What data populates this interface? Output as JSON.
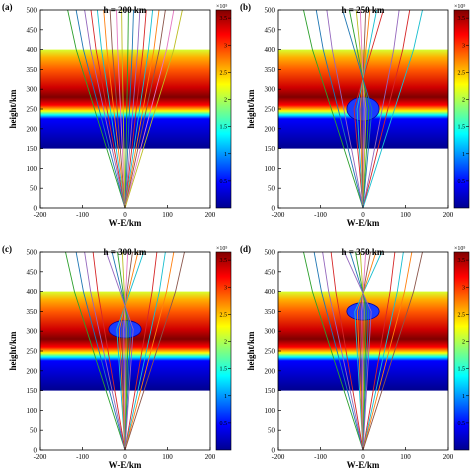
{
  "figure": {
    "axis": {
      "xlabel": "W-E/km",
      "ylabel": "height/km",
      "xticks": [
        "-200",
        "-100",
        "0",
        "100",
        "200"
      ],
      "yticks": [
        "0",
        "50",
        "100",
        "150",
        "200",
        "250",
        "300",
        "350",
        "400",
        "450",
        "500"
      ],
      "xlim": [
        -200,
        200
      ],
      "ylim": [
        0,
        500
      ]
    },
    "colorbar": {
      "exponent_label": "×10⁵",
      "ticks": [
        "0.5",
        "1",
        "1.5",
        "2",
        "2.5",
        "3",
        "3.5"
      ],
      "range": [
        0,
        3.65
      ],
      "colormap": "jet"
    }
  },
  "chart_data": [
    {
      "type": "heatmap",
      "panel_label": "(a)",
      "title": "h = 200 km",
      "ionosphere_band_km": [
        150,
        400
      ],
      "peak_height_km": 280,
      "depletion": {
        "center_x_km": 0,
        "center_y_km": 230,
        "radius_x_km": 0,
        "radius_y_km": 0
      },
      "ray_endpoints_x_km": [
        -135,
        -115,
        -95,
        -80,
        -65,
        -50,
        -35,
        -20,
        -8,
        8,
        20,
        35,
        50,
        65,
        80,
        95,
        115,
        135
      ],
      "ray_colors": [
        "#2ca02c",
        "#1f77b4",
        "#9467bd",
        "#d62728",
        "#17becf",
        "#ff7f0e",
        "#8c564b",
        "#e377c2",
        "#bcbd22",
        "#2ca02c",
        "#1f77b4",
        "#9467bd",
        "#d62728",
        "#17becf",
        "#ff7f0e",
        "#8c564b",
        "#e377c2",
        "#bcbd22"
      ]
    },
    {
      "type": "heatmap",
      "panel_label": "(b)",
      "title": "h = 250 km",
      "ionosphere_band_km": [
        150,
        400
      ],
      "peak_height_km": 280,
      "depletion": {
        "center_x_km": 0,
        "center_y_km": 250,
        "radius_x_km": 38,
        "radius_y_km": 30
      },
      "ray_endpoints_x_km": [
        -140,
        -110,
        -85,
        -60,
        -40,
        -20,
        -8,
        8,
        20,
        40,
        60,
        85,
        110,
        140
      ],
      "ray_colors": [
        "#2ca02c",
        "#1f77b4",
        "#9467bd",
        "#d62728",
        "#17becf",
        "#ff7f0e",
        "#8c564b",
        "#e377c2",
        "#bcbd22",
        "#2ca02c",
        "#1f77b4",
        "#9467bd",
        "#d62728",
        "#17becf"
      ]
    },
    {
      "type": "heatmap",
      "panel_label": "(c)",
      "title": "h = 300 km",
      "ionosphere_band_km": [
        150,
        400
      ],
      "peak_height_km": 280,
      "depletion": {
        "center_x_km": 0,
        "center_y_km": 305,
        "radius_x_km": 38,
        "radius_y_km": 22
      },
      "ray_endpoints_x_km": [
        -140,
        -115,
        -95,
        -75,
        -55,
        -38,
        -22,
        -8,
        8,
        22,
        38,
        55,
        75,
        95,
        115,
        140
      ],
      "ray_colors": [
        "#2ca02c",
        "#1f77b4",
        "#9467bd",
        "#d62728",
        "#17becf",
        "#ff7f0e",
        "#8c564b",
        "#e377c2",
        "#bcbd22",
        "#2ca02c",
        "#1f77b4",
        "#9467bd",
        "#d62728",
        "#17becf",
        "#ff7f0e",
        "#8c564b"
      ]
    },
    {
      "type": "heatmap",
      "panel_label": "(d)",
      "title": "h = 350 km",
      "ionosphere_band_km": [
        150,
        400
      ],
      "peak_height_km": 280,
      "depletion": {
        "center_x_km": 0,
        "center_y_km": 350,
        "radius_x_km": 38,
        "radius_y_km": 22
      },
      "ray_endpoints_x_km": [
        -140,
        -115,
        -95,
        -75,
        -55,
        -38,
        -22,
        -8,
        8,
        22,
        38,
        55,
        75,
        95,
        115,
        140
      ],
      "ray_colors": [
        "#2ca02c",
        "#1f77b4",
        "#9467bd",
        "#d62728",
        "#17becf",
        "#ff7f0e",
        "#8c564b",
        "#e377c2",
        "#bcbd22",
        "#2ca02c",
        "#1f77b4",
        "#9467bd",
        "#d62728",
        "#17becf",
        "#ff7f0e",
        "#8c564b"
      ]
    }
  ]
}
